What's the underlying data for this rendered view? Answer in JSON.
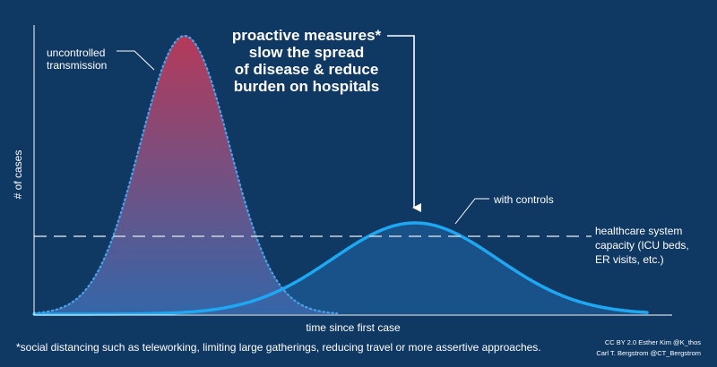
{
  "diagram": {
    "y_axis_label": "# of cases",
    "x_axis_label": "time since first case",
    "uncontrolled_label": [
      "uncontrolled",
      "transmission"
    ],
    "controls_label": "with controls",
    "capacity_label": [
      "healthcare system",
      "capacity (ICU beds,",
      "ER visits, etc.)"
    ],
    "callout": [
      "proactive measures*",
      "slow the spread",
      "of disease & reduce",
      "burden on hospitals"
    ],
    "footnote": "*social distancing such as teleworking, limiting large gatherings, reducing travel or more assertive approaches.",
    "credits": [
      "CC BY 2.0  Esther Kim  @K_thos",
      "Carl T. Bergstrom  @CT_Bergstrom"
    ]
  },
  "colors": {
    "background": "#0f3863",
    "peak_top": "#b53a5a",
    "peak_bottom": "#3466a8",
    "uncontrolled_outline": "#4aa3ea",
    "controls_line": "#1ea7f2",
    "controls_fill": "#1e5b96",
    "capacity_line": "#c8d3df",
    "text": "#ffffff"
  }
}
